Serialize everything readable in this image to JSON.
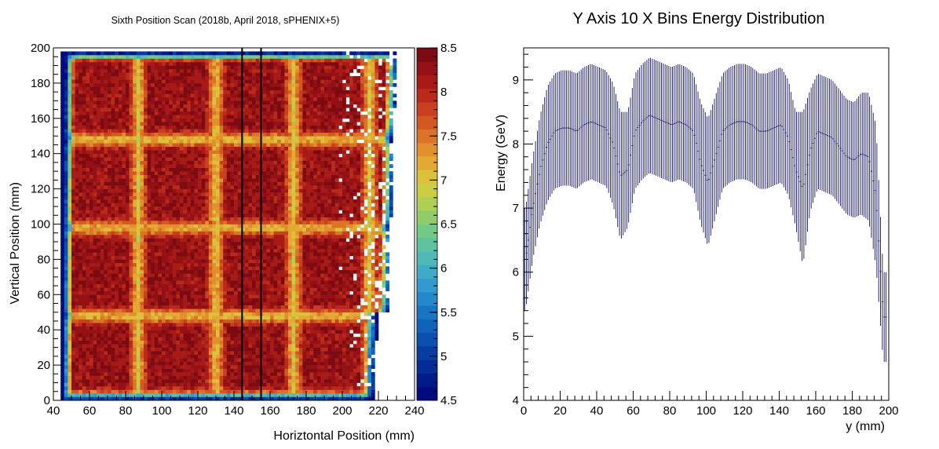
{
  "chart_data": [
    {
      "type": "heatmap",
      "title": "Sixth Position Scan (2018b, April 2018, sPHENIX+5)",
      "xlabel": "Horiztontal Position (mm)",
      "ylabel": "Vertical Position (mm)",
      "xlim": [
        40,
        240
      ],
      "ylim": [
        0,
        200
      ],
      "x_ticks": [
        "40",
        "60",
        "80",
        "100",
        "120",
        "140",
        "160",
        "180",
        "200",
        "220",
        "240"
      ],
      "y_ticks": [
        "0",
        "20",
        "40",
        "60",
        "80",
        "100",
        "120",
        "140",
        "160",
        "180",
        "200"
      ],
      "z_range": [
        4.5,
        8.5
      ],
      "z_ticks": [
        "4.5",
        "5",
        "5.5",
        "6",
        "6.5",
        "7",
        "7.5",
        "8",
        "8.5"
      ],
      "palette": [
        "#000c7d",
        "#021b8a",
        "#042c96",
        "#073da3",
        "#0b4fb0",
        "#1062bb",
        "#1875c4",
        "#2388cc",
        "#319bcf",
        "#40abc8",
        "#4fb9b7",
        "#5ec39f",
        "#73ca85",
        "#8fcd6b",
        "#aecf55",
        "#c9cd44",
        "#dcc13a",
        "#e3aa33",
        "#e2902d",
        "#dc7428",
        "#d35923",
        "#c8401f",
        "#ba2a1b",
        "#a81a17",
        "#931014",
        "#7c0a11"
      ],
      "tower_boundaries_x_mm": [
        45,
        87,
        130,
        173,
        215
      ],
      "tower_boundaries_y_mm": [
        2,
        48,
        98,
        148,
        197
      ],
      "cut_lines_x_mm": [
        144.5,
        155
      ],
      "tower_core_energy_GeV": 8.25,
      "boundary_energy_GeV": 7.0
    },
    {
      "type": "scatter",
      "title": "Y Axis 10 X Bins Energy Distribution",
      "xlabel": "y (mm)",
      "ylabel": "Energy (GeV)",
      "xlim": [
        0,
        200
      ],
      "ylim": [
        4,
        9.5
      ],
      "x_ticks": [
        "0",
        "20",
        "40",
        "60",
        "80",
        "100",
        "120",
        "140",
        "160",
        "180",
        "200"
      ],
      "y_ticks": [
        "4",
        "5",
        "6",
        "7",
        "8",
        "9"
      ],
      "color": "#10106a",
      "bin_width_mm": 1,
      "x": [
        1,
        5,
        9,
        13,
        17,
        21,
        25,
        29,
        33,
        37,
        41,
        45,
        49,
        53,
        57,
        61,
        65,
        69,
        73,
        77,
        81,
        85,
        89,
        93,
        97,
        101,
        105,
        109,
        113,
        117,
        121,
        125,
        129,
        133,
        137,
        141,
        145,
        149,
        153,
        157,
        161,
        165,
        169,
        173,
        177,
        181,
        185,
        189,
        193,
        197
      ],
      "values": [
        6.2,
        7.0,
        7.6,
        8.0,
        8.2,
        8.25,
        8.25,
        8.2,
        8.3,
        8.35,
        8.3,
        8.25,
        8.0,
        7.5,
        7.6,
        8.2,
        8.35,
        8.45,
        8.4,
        8.35,
        8.3,
        8.35,
        8.3,
        8.2,
        7.7,
        7.4,
        7.8,
        8.2,
        8.3,
        8.35,
        8.35,
        8.3,
        8.2,
        8.2,
        8.25,
        8.3,
        8.1,
        7.6,
        7.3,
        7.9,
        8.2,
        8.15,
        8.1,
        7.95,
        7.8,
        7.75,
        7.85,
        7.8,
        7.2,
        5.3
      ],
      "errors": [
        0.8,
        0.8,
        0.85,
        0.9,
        0.9,
        0.9,
        0.9,
        0.9,
        0.9,
        0.9,
        0.9,
        0.9,
        0.95,
        1.0,
        0.9,
        0.9,
        0.9,
        0.9,
        0.9,
        0.9,
        0.9,
        0.9,
        0.9,
        0.9,
        0.95,
        1.0,
        0.95,
        0.9,
        0.9,
        0.9,
        0.9,
        0.9,
        0.9,
        0.9,
        0.9,
        0.9,
        0.9,
        0.9,
        1.2,
        0.95,
        0.9,
        0.9,
        0.9,
        0.9,
        0.9,
        0.9,
        0.95,
        1.0,
        1.1,
        0.7
      ]
    }
  ]
}
